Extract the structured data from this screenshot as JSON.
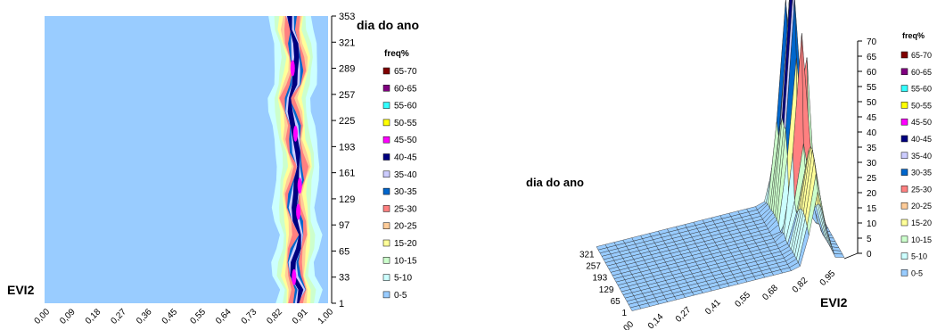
{
  "chart_data": [
    {
      "type": "heatmap",
      "title": "",
      "xlabel": "EVI2",
      "ylabel": "dia do ano",
      "x_ticks": [
        "0,00",
        "0,09",
        "0,18",
        "0,27",
        "0,36",
        "0,45",
        "0,55",
        "0,64",
        "0,73",
        "0,82",
        "0,91",
        "1,00"
      ],
      "y_ticks": [
        "353",
        "321",
        "289",
        "257",
        "225",
        "193",
        "161",
        "129",
        "97",
        "65",
        "33",
        "1"
      ],
      "legend_title": "freq%",
      "legend": [
        {
          "label": "65-70",
          "color": "#800000"
        },
        {
          "label": "60-65",
          "color": "#800080"
        },
        {
          "label": "55-60",
          "color": "#33FFFF"
        },
        {
          "label": "50-55",
          "color": "#FFFF00"
        },
        {
          "label": "45-50",
          "color": "#FF00FF"
        },
        {
          "label": "40-45",
          "color": "#000080"
        },
        {
          "label": "35-40",
          "color": "#CCCCFF"
        },
        {
          "label": "30-35",
          "color": "#0066CC"
        },
        {
          "label": "25-30",
          "color": "#FF8080"
        },
        {
          "label": "20-25",
          "color": "#FFCC99"
        },
        {
          "label": "15-20",
          "color": "#FFFF99"
        },
        {
          "label": "10-15",
          "color": "#CCFFCC"
        },
        {
          "label": "5-10",
          "color": "#CCFFFF"
        },
        {
          "label": "0-5",
          "color": "#99CCFF"
        }
      ],
      "band_evi2": [
        0.89,
        0.9,
        0.88,
        0.88,
        0.89,
        0.9,
        0.89,
        0.88,
        0.88,
        0.89,
        0.9,
        0.89,
        0.88,
        0.88,
        0.87,
        0.86,
        0.88,
        0.89,
        0.89,
        0.88,
        0.87,
        0.87
      ]
    },
    {
      "type": "surface",
      "title": "",
      "xlabel": "EVI2",
      "ylabel": "dia do ano",
      "zlim": [
        0,
        70
      ],
      "z_ticks": [
        "0",
        "5",
        "10",
        "15",
        "20",
        "25",
        "30",
        "35",
        "40",
        "45",
        "50",
        "55",
        "60",
        "65",
        "70"
      ],
      "x_ticks": [
        "0,00",
        "0,14",
        "0,27",
        "0,41",
        "0,55",
        "0,68",
        "0,82",
        "0,95"
      ],
      "y_ticks": [
        "1",
        "65",
        "129",
        "193",
        "257",
        "321"
      ],
      "legend_title": "freq%",
      "peak_freq": [
        {
          "day": 321,
          "evi2": 0.82,
          "freq": 52
        },
        {
          "day": 289,
          "evi2": 0.86,
          "freq": 57
        },
        {
          "day": 257,
          "evi2": 0.87,
          "freq": 67
        },
        {
          "day": 225,
          "evi2": 0.88,
          "freq": 58
        },
        {
          "day": 161,
          "evi2": 0.9,
          "freq": 50
        }
      ]
    }
  ]
}
